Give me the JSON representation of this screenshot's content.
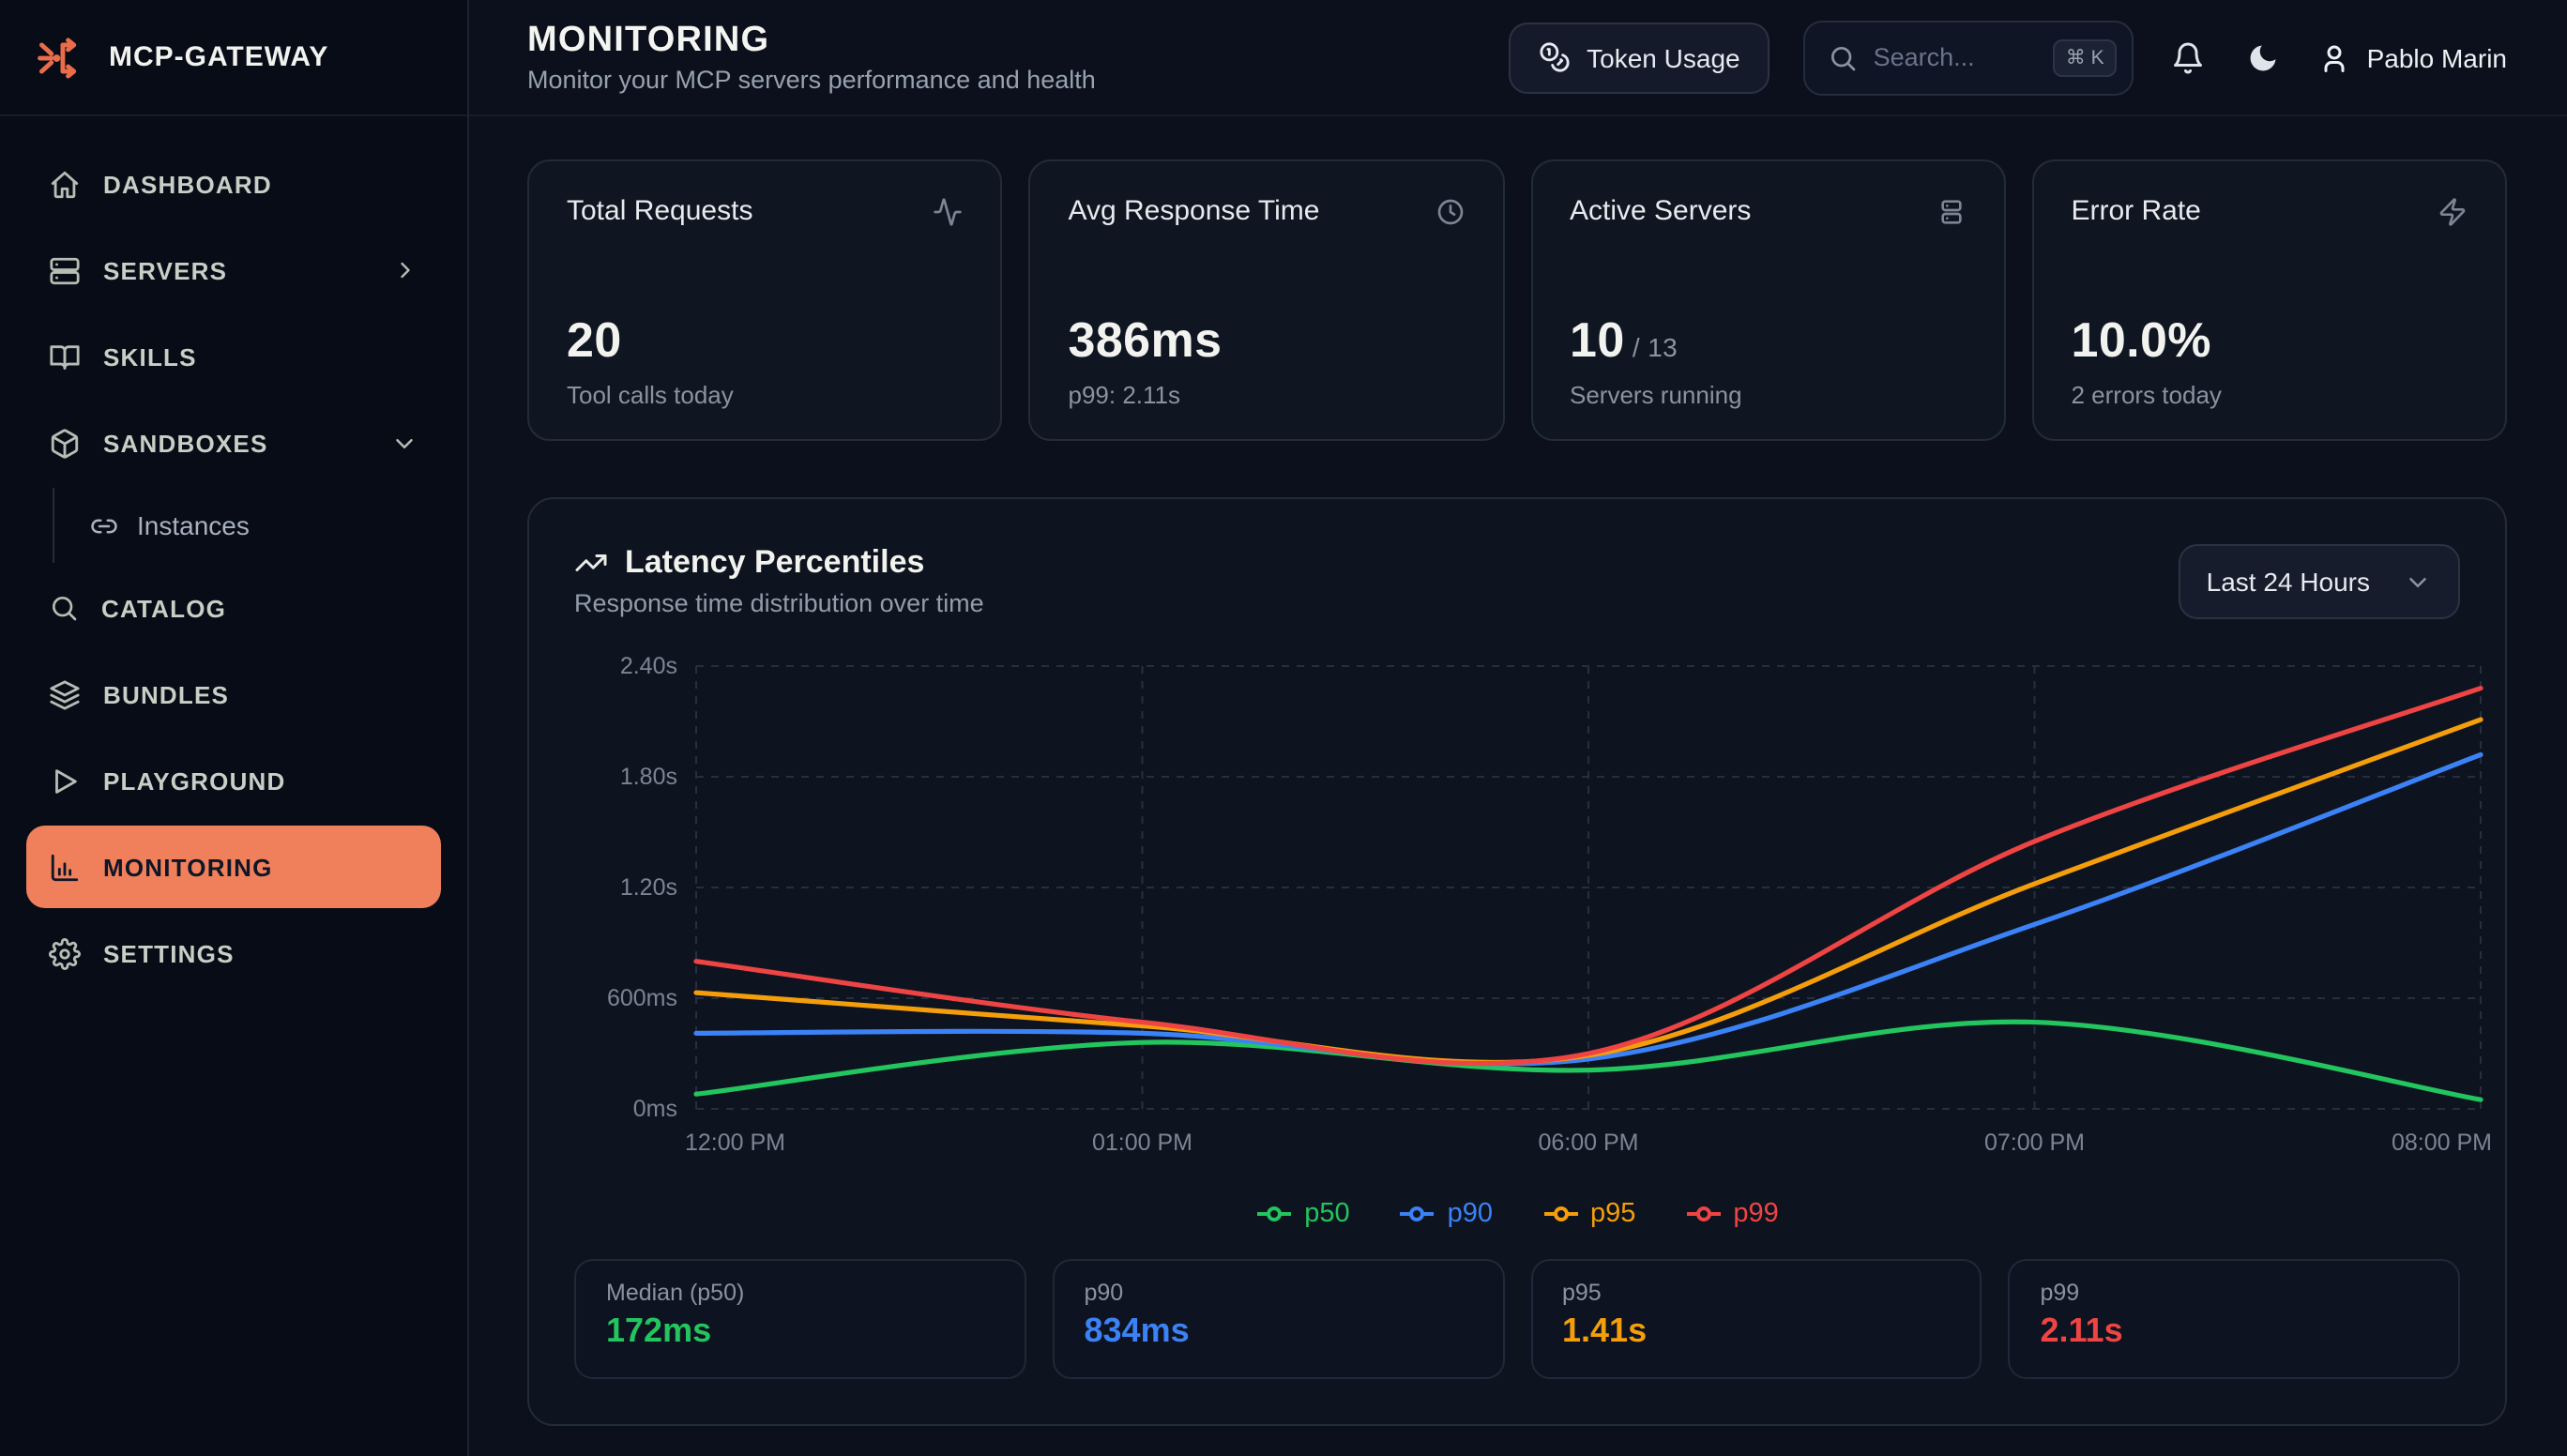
{
  "brand": {
    "name": "MCP-GATEWAY"
  },
  "colors": {
    "accent_orange": "#ef805b",
    "green": "#22c55e",
    "blue": "#3b82f6",
    "amber": "#f59e0b",
    "red": "#ef4444"
  },
  "sidebar": {
    "items": [
      {
        "id": "dashboard",
        "label": "DASHBOARD",
        "icon": "home"
      },
      {
        "id": "servers",
        "label": "SERVERS",
        "icon": "servers",
        "trailing": "chevron-right"
      },
      {
        "id": "skills",
        "label": "SKILLS",
        "icon": "book-open"
      },
      {
        "id": "sandboxes",
        "label": "SANDBOXES",
        "icon": "box",
        "trailing": "chevron-down"
      },
      {
        "id": "instances",
        "label": "Instances",
        "icon": "link",
        "sub": true
      },
      {
        "id": "catalog",
        "label": "CATALOG",
        "icon": "search"
      },
      {
        "id": "bundles",
        "label": "BUNDLES",
        "icon": "layers"
      },
      {
        "id": "playground",
        "label": "PLAYGROUND",
        "icon": "play"
      },
      {
        "id": "monitoring",
        "label": "MONITORING",
        "icon": "bar-chart",
        "active": true
      },
      {
        "id": "settings",
        "label": "SETTINGS",
        "icon": "gear"
      }
    ]
  },
  "header": {
    "title": "MONITORING",
    "subtitle": "Monitor your MCP servers performance and health",
    "token_usage_label": "Token Usage",
    "search_placeholder": "Search...",
    "search_kbd": "⌘ K",
    "user_name": "Pablo Marin"
  },
  "stats": [
    {
      "label": "Total Requests",
      "icon": "activity",
      "value": "20",
      "subtitle": "Tool calls today"
    },
    {
      "label": "Avg Response Time",
      "icon": "clock",
      "value": "386ms",
      "subtitle": "p99: 2.11s"
    },
    {
      "label": "Active Servers",
      "icon": "server-rack",
      "value": "10",
      "value_suffix": " / 13",
      "subtitle": "Servers running"
    },
    {
      "label": "Error Rate",
      "icon": "zap",
      "value": "10.0%",
      "subtitle": "2 errors today"
    }
  ],
  "chart_panel": {
    "title": "Latency Percentiles",
    "subtitle": "Response time distribution over time",
    "range_label": "Last 24 Hours"
  },
  "chart_data": {
    "type": "line",
    "title": "Latency Percentiles",
    "x": [
      "12:00 PM",
      "01:00 PM",
      "06:00 PM",
      "07:00 PM",
      "08:00 PM"
    ],
    "y_ticks": [
      "0ms",
      "600ms",
      "1.20s",
      "1.80s",
      "2.40s"
    ],
    "y_tick_seconds": [
      0,
      0.6,
      1.2,
      1.8,
      2.4
    ],
    "ylim_seconds": [
      0,
      2.4
    ],
    "grid": true,
    "grid_style": "dashed",
    "legend_position": "bottom",
    "series": [
      {
        "name": "p50",
        "color": "#22c55e",
        "values_seconds": [
          0.08,
          0.36,
          0.21,
          0.47,
          0.05
        ]
      },
      {
        "name": "p90",
        "color": "#3b82f6",
        "values_seconds": [
          0.41,
          0.41,
          0.27,
          1.0,
          1.92
        ]
      },
      {
        "name": "p95",
        "color": "#f59e0b",
        "values_seconds": [
          0.63,
          0.45,
          0.29,
          1.22,
          2.11
        ]
      },
      {
        "name": "p99",
        "color": "#ef4444",
        "values_seconds": [
          0.8,
          0.47,
          0.3,
          1.45,
          2.28
        ]
      }
    ]
  },
  "summary_cards": [
    {
      "label": "Median (p50)",
      "value": "172ms",
      "color": "#22c55e"
    },
    {
      "label": "p90",
      "value": "834ms",
      "color": "#3b82f6"
    },
    {
      "label": "p95",
      "value": "1.41s",
      "color": "#f59e0b"
    },
    {
      "label": "p99",
      "value": "2.11s",
      "color": "#ef4444"
    }
  ]
}
